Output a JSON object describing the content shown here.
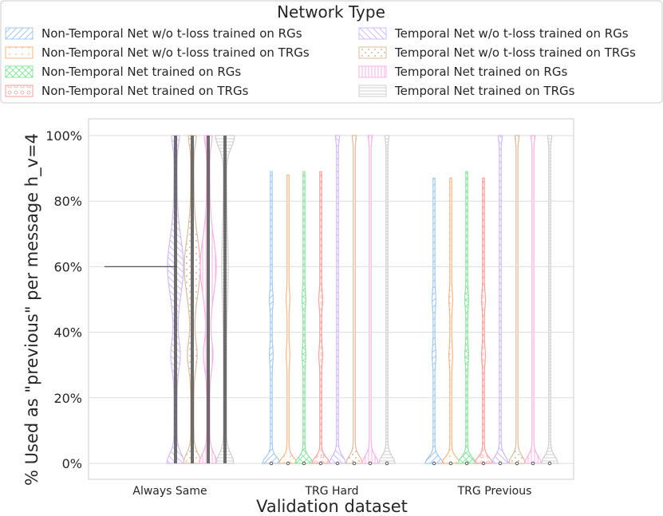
{
  "chart_data": {
    "type": "violin",
    "title": "",
    "xlabel": "Validation dataset",
    "ylabel": "% Used as \"previous\" per message h_v=4",
    "ylim": [
      0,
      100
    ],
    "yticks": [
      0,
      20,
      40,
      60,
      80,
      100
    ],
    "ytick_labels": [
      "0%",
      "20%",
      "40%",
      "60%",
      "80%",
      "100%"
    ],
    "grid": true,
    "categories": [
      "Always Same",
      "TRG Hard",
      "TRG Previous"
    ],
    "legend": {
      "title": "Network Type",
      "placement": "top",
      "columns": 2
    },
    "series": [
      {
        "name": "Non-Temporal Net w/o t-loss trained on RGs",
        "color": "#a1c9f4",
        "hatch": "diagonal",
        "max": [
          null,
          89,
          87
        ],
        "median": [
          null,
          0,
          0
        ]
      },
      {
        "name": "Non-Temporal Net w/o t-loss trained on TRGs",
        "color": "#ffb482",
        "hatch": "dots",
        "max": [
          null,
          88,
          87
        ],
        "median": [
          null,
          0,
          0
        ]
      },
      {
        "name": "Non-Temporal Net trained on RGs",
        "color": "#8de5a1",
        "hatch": "cross",
        "max": [
          null,
          89,
          89
        ],
        "median": [
          null,
          0,
          0
        ]
      },
      {
        "name": "Non-Temporal Net trained on TRGs",
        "color": "#ff9f9b",
        "hatch": "circles",
        "max": [
          null,
          89,
          87
        ],
        "median": [
          null,
          0,
          0
        ]
      },
      {
        "name": "Temporal Net w/o t-loss trained on RGs",
        "color": "#d0bbff",
        "hatch": "backdiagonal",
        "max": [
          100,
          100,
          100
        ],
        "median": [
          60,
          0,
          0
        ]
      },
      {
        "name": "Temporal Net w/o t-loss trained on TRGs",
        "color": "#debb9b",
        "hatch": "dense-dots",
        "max": [
          100,
          100,
          100
        ],
        "median": [
          60,
          0,
          0
        ]
      },
      {
        "name": "Temporal Net trained on RGs",
        "color": "#fab0e4",
        "hatch": "vertical",
        "max": [
          100,
          100,
          100
        ],
        "median": [
          60,
          0,
          0
        ]
      },
      {
        "name": "Temporal Net trained on TRGs",
        "color": "#cfcfcf",
        "hatch": "horizontal",
        "max": [
          100,
          100,
          100
        ],
        "median": [
          100,
          0,
          0
        ]
      }
    ]
  }
}
